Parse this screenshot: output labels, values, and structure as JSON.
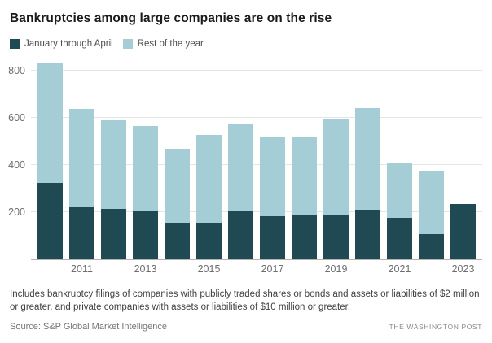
{
  "title": "Bankruptcies among large companies are on the rise",
  "legend": [
    {
      "label": "January through April",
      "color": "#1f4a53"
    },
    {
      "label": "Rest of the year",
      "color": "#a5cdd5"
    }
  ],
  "chart_data": {
    "type": "bar",
    "stacked": true,
    "title": "Bankruptcies among large companies are on the rise",
    "categories": [
      "2010",
      "2011",
      "2012",
      "2013",
      "2014",
      "2015",
      "2016",
      "2017",
      "2018",
      "2019",
      "2020",
      "2021",
      "2022",
      "2023"
    ],
    "series": [
      {
        "name": "January through April",
        "color": "#1f4a53",
        "values": [
          325,
          220,
          214,
          205,
          155,
          154,
          202,
          183,
          186,
          190,
          210,
          175,
          108,
          236
        ]
      },
      {
        "name": "Rest of the year",
        "color": "#a5cdd5",
        "values": [
          505,
          417,
          376,
          360,
          315,
          373,
          375,
          337,
          334,
          403,
          430,
          232,
          267,
          0
        ]
      }
    ],
    "totals": [
      830,
      637,
      590,
      565,
      470,
      527,
      577,
      520,
      520,
      593,
      640,
      407,
      375,
      236
    ],
    "y_ticks": [
      200,
      400,
      600,
      800
    ],
    "ylim": [
      0,
      831
    ],
    "x_tick_labels": [
      "2011",
      "2013",
      "2015",
      "2017",
      "2019",
      "2021",
      "2023"
    ],
    "grid": true,
    "legend_position": "top-left",
    "gridline_color": "#e5e5e5",
    "axis_line_color": "#b3b3b3"
  },
  "footer": {
    "note": "Includes bankruptcy filings of companies with publicly traded shares or bonds and assets or liabilities of $2 million or greater, and private companies with assets or liabilities of $10 million or greater.",
    "source": "Source: S&P Global Market Intelligence",
    "credit": "THE WASHINGTON POST"
  }
}
